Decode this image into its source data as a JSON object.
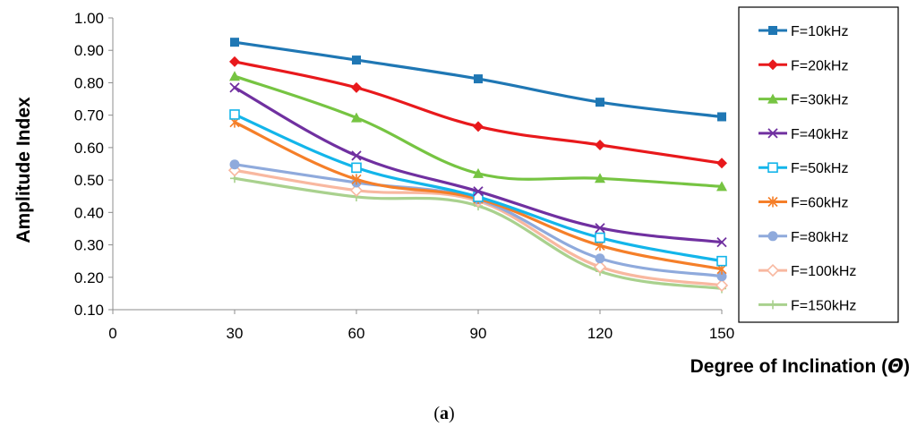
{
  "chart_data": {
    "type": "line",
    "title": "",
    "xlabel": "Degree of Inclination (",
    "xlabel_symbol": "Θ",
    "xlabel_close": ")",
    "ylabel": "Amplitude Index",
    "caption_open": "(",
    "caption_letter": "a",
    "caption_close": ")",
    "xlim": [
      0,
      150
    ],
    "ylim": [
      0.1,
      1.0
    ],
    "x_ticks": [
      "0",
      "30",
      "60",
      "90",
      "120",
      "150"
    ],
    "y_ticks": [
      "0.10",
      "0.20",
      "0.30",
      "0.40",
      "0.50",
      "0.60",
      "0.70",
      "0.80",
      "0.90",
      "1.00"
    ],
    "grid": false,
    "legend_position": "right",
    "x": [
      30,
      60,
      90,
      120,
      150
    ],
    "series": [
      {
        "name": "F=10kHz",
        "values": [
          0.925,
          0.87,
          0.812,
          0.74,
          0.695
        ],
        "color": "#1F77B4",
        "marker": "square"
      },
      {
        "name": "F=20kHz",
        "values": [
          0.865,
          0.785,
          0.665,
          0.608,
          0.552
        ],
        "color": "#E8191C",
        "marker": "diamond"
      },
      {
        "name": "F=30kHz",
        "values": [
          0.82,
          0.692,
          0.52,
          0.505,
          0.48
        ],
        "color": "#76C442",
        "marker": "triangle"
      },
      {
        "name": "F=40kHz",
        "values": [
          0.785,
          0.575,
          0.465,
          0.352,
          0.308
        ],
        "color": "#7030A0",
        "marker": "x"
      },
      {
        "name": "F=50kHz",
        "values": [
          0.702,
          0.538,
          0.448,
          0.322,
          0.25
        ],
        "color": "#13B5EA",
        "marker": "open-square"
      },
      {
        "name": "F=60kHz",
        "values": [
          0.678,
          0.502,
          0.442,
          0.298,
          0.225
        ],
        "color": "#F57F29",
        "marker": "star"
      },
      {
        "name": "F=80kHz",
        "values": [
          0.548,
          0.492,
          0.44,
          0.258,
          0.203
        ],
        "color": "#8FAADC",
        "marker": "circle"
      },
      {
        "name": "F=100kHz",
        "values": [
          0.53,
          0.468,
          0.435,
          0.232,
          0.175
        ],
        "color": "#F8B8A0",
        "marker": "open-diamond"
      },
      {
        "name": "F=150kHz",
        "values": [
          0.505,
          0.448,
          0.42,
          0.218,
          0.165
        ],
        "color": "#A9D18E",
        "marker": "plus"
      }
    ]
  }
}
